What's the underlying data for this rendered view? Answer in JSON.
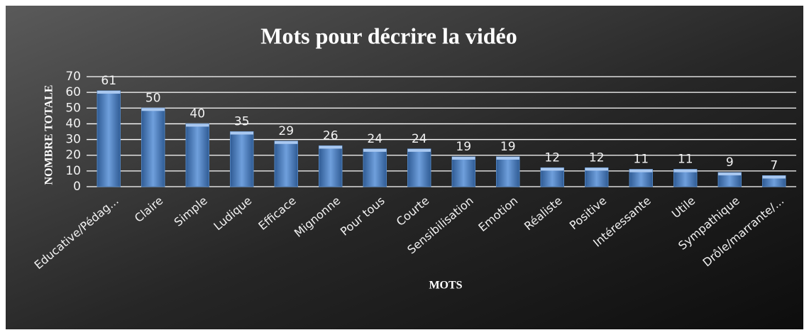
{
  "chart_data": {
    "type": "bar",
    "title": "Mots pour décrire la vidéo",
    "x_label": "MOTS",
    "y_label": "NOMBRE TOTALE",
    "categories": [
      "Educative/Pédag...",
      "Claire",
      "Simple",
      "Ludique",
      "Efficace",
      "Mignonne",
      "Pour tous",
      "Courte",
      "Sensibilisation",
      "Emotion",
      "Réaliste",
      "Positive",
      "Intéressante",
      "Utile",
      "Sympathique",
      "Drôle/marrante/..."
    ],
    "values": [
      61,
      50,
      40,
      35,
      29,
      26,
      24,
      24,
      19,
      19,
      12,
      12,
      11,
      11,
      9,
      7
    ],
    "color": "#4f81bd",
    "ylim": [
      0,
      70
    ],
    "yticks": [
      0,
      10,
      20,
      30,
      40,
      50,
      60,
      70
    ],
    "grid": true
  }
}
